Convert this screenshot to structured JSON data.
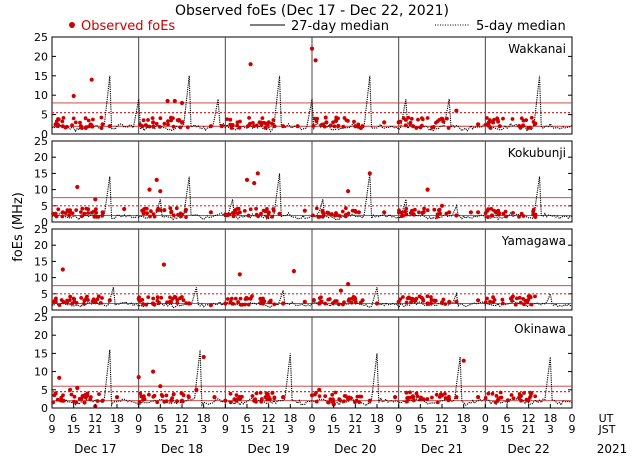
{
  "chart_data": {
    "type": "scatter",
    "title": "Observed foEs (Dec 17 - Dec 22, 2021)",
    "ylabel": "foEs (MHz)",
    "ylim": [
      0,
      25
    ],
    "yticks": [
      0,
      5,
      10,
      15,
      20,
      25
    ],
    "xlim_hours_ut": [
      0,
      144
    ],
    "legend": {
      "position": "top",
      "observed": "Observed foEs",
      "median27": "27-day median",
      "median5": "5-day median"
    },
    "colors": {
      "observed": "#cc0000",
      "median27": "#cc3333",
      "median5": "#000000",
      "frame": "#000000"
    },
    "x_axis": {
      "ut_label": "UT",
      "jst_label": "JST",
      "year": "2021",
      "ut_ticks": [
        "0",
        "6",
        "12",
        "18",
        "0",
        "6",
        "12",
        "18",
        "0",
        "6",
        "12",
        "18",
        "0",
        "6",
        "12",
        "18",
        "0",
        "6",
        "12",
        "18",
        "0",
        "6",
        "12",
        "18",
        "0"
      ],
      "jst_ticks": [
        "9",
        "15",
        "21",
        "3",
        "9",
        "15",
        "21",
        "3",
        "9",
        "15",
        "21",
        "3",
        "9",
        "15",
        "21",
        "3",
        "9",
        "15",
        "21",
        "3",
        "9",
        "15",
        "21",
        "3",
        "9"
      ],
      "days": [
        "Dec 17",
        "Dec 18",
        "Dec 19",
        "Dec 20",
        "Dec 21",
        "Dec 22"
      ]
    },
    "stations": [
      {
        "name": "Wakkanai",
        "median27_ref": [
          2,
          5.5,
          8
        ],
        "spikes": [
          [
            16,
            15
          ],
          [
            24,
            9
          ],
          [
            38,
            15
          ],
          [
            46,
            9
          ],
          [
            63,
            15
          ],
          [
            72,
            9
          ],
          [
            88,
            15
          ],
          [
            98,
            9
          ],
          [
            110,
            9
          ],
          [
            135,
            15
          ]
        ],
        "observed": [
          [
            1,
            2.5
          ],
          [
            3,
            2
          ],
          [
            6,
            9.8
          ],
          [
            8,
            2
          ],
          [
            11,
            14
          ],
          [
            14,
            2.5
          ],
          [
            16,
            2
          ],
          [
            25,
            2
          ],
          [
            28,
            3
          ],
          [
            32,
            8.5
          ],
          [
            34,
            8.5
          ],
          [
            36,
            8
          ],
          [
            44,
            2
          ],
          [
            47,
            2
          ],
          [
            50,
            2.3
          ],
          [
            55,
            18
          ],
          [
            58,
            2.5
          ],
          [
            60,
            3
          ],
          [
            64,
            2
          ],
          [
            68,
            2
          ],
          [
            72,
            22
          ],
          [
            73,
            19
          ],
          [
            76,
            3
          ],
          [
            84,
            2
          ],
          [
            86,
            2
          ],
          [
            92,
            3
          ],
          [
            96,
            3
          ],
          [
            100,
            2
          ],
          [
            112,
            6
          ],
          [
            118,
            2.5
          ],
          [
            121,
            3
          ],
          [
            124,
            2
          ]
        ]
      },
      {
        "name": "Kokubunji",
        "median27_ref": [
          2,
          5,
          7.5
        ],
        "spikes": [
          [
            16,
            14
          ],
          [
            30,
            7
          ],
          [
            38,
            14
          ],
          [
            50,
            7
          ],
          [
            63,
            15
          ],
          [
            75,
            7
          ],
          [
            88,
            15
          ],
          [
            98,
            7
          ],
          [
            112,
            5
          ],
          [
            135,
            14
          ]
        ],
        "observed": [
          [
            1,
            2.5
          ],
          [
            3,
            3
          ],
          [
            7,
            10.8
          ],
          [
            9,
            2.5
          ],
          [
            12,
            7
          ],
          [
            14,
            3
          ],
          [
            20,
            4
          ],
          [
            25,
            3.5
          ],
          [
            27,
            10
          ],
          [
            29,
            13
          ],
          [
            30,
            9.5
          ],
          [
            33,
            3
          ],
          [
            44,
            3
          ],
          [
            49,
            2.3
          ],
          [
            52,
            3
          ],
          [
            54,
            13
          ],
          [
            56,
            12
          ],
          [
            57,
            15
          ],
          [
            60,
            3
          ],
          [
            63,
            2.5
          ],
          [
            70,
            3.5
          ],
          [
            75,
            3
          ],
          [
            82,
            9.5
          ],
          [
            85,
            3
          ],
          [
            88,
            15
          ],
          [
            92,
            3
          ],
          [
            100,
            2.5
          ],
          [
            104,
            10
          ],
          [
            108,
            5
          ],
          [
            110,
            3
          ],
          [
            112,
            2
          ],
          [
            116,
            3
          ],
          [
            118,
            3
          ]
        ]
      },
      {
        "name": "Yamagawa",
        "median27_ref": [
          2,
          5,
          7.5
        ],
        "spikes": [
          [
            17,
            7
          ],
          [
            40,
            7
          ],
          [
            64,
            6
          ],
          [
            90,
            7
          ],
          [
            112,
            5
          ],
          [
            138,
            5
          ]
        ],
        "observed": [
          [
            1,
            3
          ],
          [
            3,
            12.5
          ],
          [
            6,
            3.5
          ],
          [
            9,
            3
          ],
          [
            12,
            2.5
          ],
          [
            16,
            3
          ],
          [
            24,
            3.5
          ],
          [
            28,
            2
          ],
          [
            31,
            14
          ],
          [
            34,
            4
          ],
          [
            38,
            2
          ],
          [
            44,
            1.5
          ],
          [
            48,
            2
          ],
          [
            52,
            11
          ],
          [
            55,
            3.5
          ],
          [
            58,
            3
          ],
          [
            64,
            2
          ],
          [
            67,
            12
          ],
          [
            70,
            2.5
          ],
          [
            74,
            2
          ],
          [
            80,
            6
          ],
          [
            82,
            8
          ],
          [
            86,
            3
          ],
          [
            90,
            2
          ],
          [
            96,
            2.5
          ],
          [
            100,
            3
          ],
          [
            104,
            2
          ],
          [
            110,
            2.5
          ],
          [
            112,
            2.5
          ],
          [
            118,
            3
          ]
        ]
      },
      {
        "name": "Okinawa",
        "median27_ref": [
          2,
          4.5,
          6
        ],
        "spikes": [
          [
            16,
            16
          ],
          [
            41,
            16
          ],
          [
            66,
            15
          ],
          [
            90,
            15
          ],
          [
            113,
            14
          ],
          [
            138,
            14
          ]
        ],
        "observed": [
          [
            1,
            4
          ],
          [
            2,
            8.3
          ],
          [
            5,
            5
          ],
          [
            7,
            5.5
          ],
          [
            9,
            1.5
          ],
          [
            12,
            0.5
          ],
          [
            14,
            2
          ],
          [
            18,
            3
          ],
          [
            24,
            8.5
          ],
          [
            28,
            10
          ],
          [
            30,
            6
          ],
          [
            33,
            2
          ],
          [
            36,
            2
          ],
          [
            40,
            5
          ],
          [
            42,
            14
          ],
          [
            45,
            3
          ],
          [
            48,
            2
          ],
          [
            52,
            3
          ],
          [
            56,
            2
          ],
          [
            60,
            3
          ],
          [
            64,
            3
          ],
          [
            72,
            3.5
          ],
          [
            74,
            5
          ],
          [
            78,
            1
          ],
          [
            82,
            2.5
          ],
          [
            88,
            2
          ],
          [
            95,
            3
          ],
          [
            100,
            3
          ],
          [
            108,
            3.5
          ],
          [
            112,
            3
          ],
          [
            114,
            13
          ],
          [
            118,
            3
          ]
        ]
      }
    ]
  }
}
